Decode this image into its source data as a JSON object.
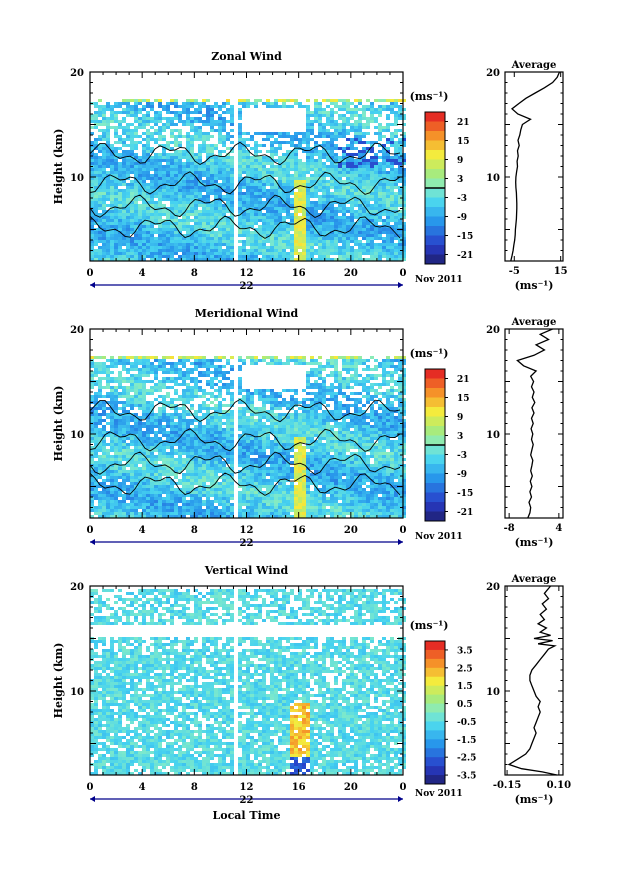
{
  "figure": {
    "date_label": "Nov 2011",
    "xlabel": "Local Time",
    "ylabel": "Height (km)",
    "units": "(ms⁻¹)",
    "average_title": "Average",
    "day_label": "22",
    "line_color": "#000000",
    "arrow_color": "#00008b"
  },
  "chart_data": [
    {
      "type": "heatmap",
      "title": "Zonal Wind",
      "xlabel": "",
      "ylabel": "Height (km)",
      "x_ticks": [
        "0",
        "4",
        "8",
        "12",
        "16",
        "20",
        "0"
      ],
      "x_range_hours": [
        0,
        24
      ],
      "y_ticks": [
        10,
        20
      ],
      "ylim": [
        2,
        20
      ],
      "colorbar": {
        "unit": "(ms⁻¹)",
        "ticks": [
          "21",
          "15",
          "9",
          "3",
          "-3",
          "-9",
          "-15",
          "-21"
        ],
        "range": [
          -24,
          24
        ],
        "zero_line": true
      },
      "field": {
        "data_top_km": 17.7,
        "gap_hours": [
          10.8,
          11.2
        ],
        "white_band_km": [
          14.5,
          16.8
        ],
        "white_band_hours": [
          11.5,
          16.5
        ],
        "contours": true
      },
      "profile": {
        "type": "line",
        "title": "Average",
        "xlabel": "(ms⁻¹)",
        "x_ticks": [
          "-5",
          "15"
        ],
        "x_tick_values": [
          -5,
          15
        ],
        "xlim": [
          -9,
          16
        ],
        "y_ticks": [
          10,
          20
        ],
        "ylim": [
          2,
          20
        ],
        "points": [
          [
            -6.5,
            2.0
          ],
          [
            -6.0,
            2.5
          ],
          [
            -5.5,
            3.0
          ],
          [
            -5.2,
            3.5
          ],
          [
            -4.8,
            4.0
          ],
          [
            -4.6,
            4.5
          ],
          [
            -4.5,
            5.0
          ],
          [
            -4.3,
            5.5
          ],
          [
            -4.1,
            6.0
          ],
          [
            -4.0,
            6.5
          ],
          [
            -3.9,
            7.0
          ],
          [
            -3.9,
            7.5
          ],
          [
            -4.0,
            8.0
          ],
          [
            -4.1,
            8.5
          ],
          [
            -4.3,
            9.0
          ],
          [
            -4.4,
            9.5
          ],
          [
            -4.3,
            10.0
          ],
          [
            -4.0,
            10.5
          ],
          [
            -3.6,
            11.0
          ],
          [
            -3.8,
            11.5
          ],
          [
            -3.3,
            12.0
          ],
          [
            -3.6,
            12.5
          ],
          [
            -2.9,
            13.0
          ],
          [
            -3.4,
            13.5
          ],
          [
            -2.6,
            14.0
          ],
          [
            -2.2,
            14.5
          ],
          [
            -1.5,
            15.0
          ],
          [
            2.0,
            15.5
          ],
          [
            -3.5,
            16.0
          ],
          [
            -6.0,
            16.5
          ],
          [
            -3.0,
            17.0
          ],
          [
            0.0,
            17.5
          ],
          [
            4.0,
            18.0
          ],
          [
            8.0,
            18.5
          ],
          [
            11.5,
            19.0
          ],
          [
            13.5,
            19.5
          ],
          [
            14.5,
            20.0
          ]
        ]
      }
    },
    {
      "type": "heatmap",
      "title": "Meridional Wind",
      "xlabel": "",
      "ylabel": "Height (km)",
      "x_ticks": [
        "0",
        "4",
        "8",
        "12",
        "16",
        "20",
        "0"
      ],
      "x_range_hours": [
        0,
        24
      ],
      "y_ticks": [
        10,
        20
      ],
      "ylim": [
        2,
        20
      ],
      "colorbar": {
        "unit": "(ms⁻¹)",
        "ticks": [
          "21",
          "15",
          "9",
          "3",
          "-3",
          "-9",
          "-15",
          "-21"
        ],
        "range": [
          -24,
          24
        ],
        "zero_line": true
      },
      "field": {
        "data_top_km": 17.7,
        "gap_hours": [
          10.8,
          11.2
        ],
        "white_band_km": [
          14.5,
          16.8
        ],
        "white_band_hours": [
          11.5,
          16.5
        ],
        "contours": true
      },
      "profile": {
        "type": "line",
        "title": "Average",
        "xlabel": "(ms⁻¹)",
        "x_ticks": [
          "-8",
          "4"
        ],
        "x_tick_values": [
          -8,
          4
        ],
        "xlim": [
          -9,
          5
        ],
        "y_ticks": [
          10,
          20
        ],
        "ylim": [
          2,
          20
        ],
        "points": [
          [
            -3.5,
            2.0
          ],
          [
            -3.0,
            2.5
          ],
          [
            -2.8,
            3.0
          ],
          [
            -3.2,
            3.5
          ],
          [
            -2.6,
            4.0
          ],
          [
            -3.0,
            4.5
          ],
          [
            -2.5,
            5.0
          ],
          [
            -2.9,
            5.5
          ],
          [
            -2.4,
            6.0
          ],
          [
            -2.8,
            6.5
          ],
          [
            -2.5,
            7.0
          ],
          [
            -2.3,
            7.5
          ],
          [
            -2.8,
            8.0
          ],
          [
            -2.5,
            8.5
          ],
          [
            -2.2,
            9.0
          ],
          [
            -2.6,
            9.5
          ],
          [
            -2.3,
            10.0
          ],
          [
            -2.7,
            10.5
          ],
          [
            -2.2,
            11.0
          ],
          [
            -2.6,
            11.5
          ],
          [
            -2.0,
            12.0
          ],
          [
            -2.5,
            12.5
          ],
          [
            -1.8,
            13.0
          ],
          [
            -2.4,
            13.5
          ],
          [
            -2.0,
            14.0
          ],
          [
            -2.6,
            14.5
          ],
          [
            -2.1,
            15.0
          ],
          [
            -2.8,
            15.5
          ],
          [
            -1.5,
            16.0
          ],
          [
            -4.5,
            16.5
          ],
          [
            -6.0,
            17.0
          ],
          [
            -2.0,
            17.5
          ],
          [
            0.5,
            18.0
          ],
          [
            -1.5,
            18.5
          ],
          [
            1.5,
            19.0
          ],
          [
            -0.5,
            19.5
          ],
          [
            2.5,
            20.0
          ]
        ]
      }
    },
    {
      "type": "heatmap",
      "title": "Vertical Wind",
      "xlabel": "Local Time",
      "ylabel": "Height (km)",
      "x_ticks": [
        "0",
        "4",
        "8",
        "12",
        "16",
        "20",
        "0"
      ],
      "x_range_hours": [
        0,
        24
      ],
      "y_ticks": [
        10,
        20
      ],
      "ylim": [
        2,
        20
      ],
      "colorbar": {
        "unit": "(ms⁻¹)",
        "ticks": [
          "3.5",
          "2.5",
          "1.5",
          "0.5",
          "-0.5",
          "-1.5",
          "-2.5",
          "-3.5"
        ],
        "range": [
          -4,
          4
        ],
        "zero_line": false
      },
      "field": {
        "data_top_km": 19.8,
        "gap_hours": [
          10.8,
          11.2
        ],
        "white_band_km": [
          15.2,
          16.4
        ],
        "white_band_hours": [
          0,
          24
        ],
        "contours": false
      },
      "profile": {
        "type": "line",
        "title": "Average",
        "xlabel": "(ms⁻¹)",
        "x_ticks": [
          "-0.15",
          "0.10"
        ],
        "x_tick_values": [
          -0.15,
          0.1
        ],
        "xlim": [
          -0.16,
          0.12
        ],
        "y_ticks": [
          10,
          20
        ],
        "ylim": [
          2,
          20
        ],
        "points": [
          [
            0.09,
            2.0
          ],
          [
            0.02,
            2.3
          ],
          [
            -0.08,
            2.6
          ],
          [
            -0.14,
            3.0
          ],
          [
            -0.1,
            3.5
          ],
          [
            -0.06,
            4.0
          ],
          [
            -0.04,
            4.5
          ],
          [
            -0.03,
            5.0
          ],
          [
            -0.02,
            5.5
          ],
          [
            -0.01,
            6.0
          ],
          [
            -0.02,
            6.5
          ],
          [
            -0.01,
            7.0
          ],
          [
            0.0,
            7.5
          ],
          [
            0.01,
            8.0
          ],
          [
            0.0,
            8.5
          ],
          [
            0.01,
            9.0
          ],
          [
            -0.01,
            9.5
          ],
          [
            -0.02,
            10.0
          ],
          [
            -0.03,
            10.5
          ],
          [
            -0.04,
            11.0
          ],
          [
            -0.04,
            11.5
          ],
          [
            -0.03,
            12.0
          ],
          [
            -0.01,
            12.5
          ],
          [
            0.01,
            13.0
          ],
          [
            0.03,
            13.5
          ],
          [
            0.05,
            14.0
          ],
          [
            0.08,
            14.3
          ],
          [
            0.0,
            14.5
          ],
          [
            0.07,
            14.8
          ],
          [
            -0.02,
            15.0
          ],
          [
            0.06,
            15.3
          ],
          [
            0.01,
            15.6
          ],
          [
            0.04,
            16.0
          ],
          [
            0.0,
            16.4
          ],
          [
            0.03,
            16.8
          ],
          [
            0.01,
            17.3
          ],
          [
            0.04,
            17.8
          ],
          [
            0.02,
            18.3
          ],
          [
            0.05,
            18.8
          ],
          [
            0.03,
            19.3
          ],
          [
            0.06,
            20.0
          ]
        ]
      }
    }
  ]
}
